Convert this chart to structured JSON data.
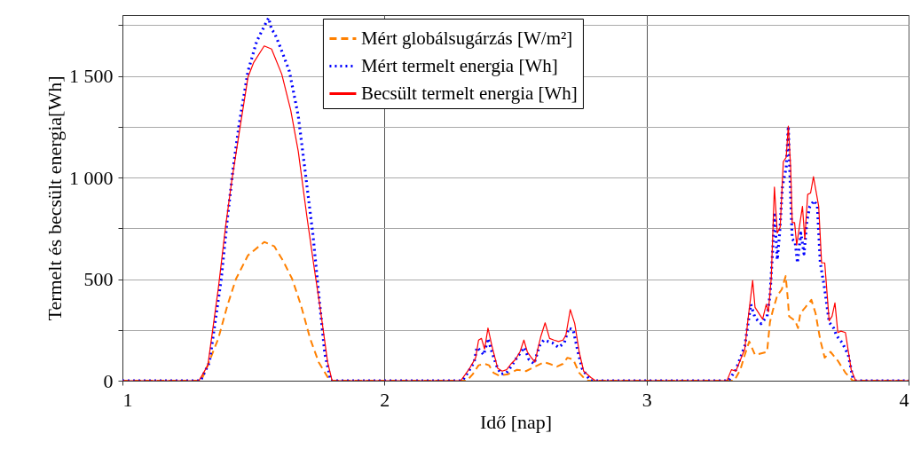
{
  "chart_data": {
    "type": "line",
    "xlabel": "Idő [nap]",
    "ylabel": "Termelt és becsült energia[Wh]",
    "xlim": [
      1,
      4
    ],
    "xticks": [
      1,
      2,
      3,
      4
    ],
    "ylim": [
      0,
      1800
    ],
    "yticks": [
      0,
      {
        "value": 250,
        "label": null
      },
      500,
      {
        "value": 750,
        "label": null
      },
      {
        "value": 1000,
        "label": "1 000"
      },
      {
        "value": 1250,
        "label": null
      },
      {
        "value": 1500,
        "label": "1 500"
      },
      {
        "value": 1750,
        "label": null
      }
    ],
    "grid": true,
    "legend": "top",
    "series": [
      {
        "name": "Mért globálsugárzás [W/m²]",
        "color": "#ff8000",
        "line_style": "dashed",
        "x": [
          1,
          1.3,
          1.321,
          1.366,
          1.4,
          1.433,
          1.479,
          1.541,
          1.58,
          1.614,
          1.648,
          1.682,
          1.716,
          1.749,
          1.783,
          1.8,
          2.314,
          2.337,
          2.359,
          2.382,
          2.399,
          2.416,
          2.438,
          2.472,
          2.506,
          2.54,
          2.562,
          2.585,
          2.608,
          2.63,
          2.658,
          2.681,
          2.698,
          2.72,
          2.743,
          2.766,
          2.777,
          3.335,
          3.358,
          3.375,
          3.392,
          3.414,
          3.46,
          3.471,
          3.482,
          3.499,
          3.516,
          3.531,
          3.539,
          3.544,
          3.567,
          3.578,
          3.587,
          3.606,
          3.629,
          3.645,
          3.663,
          3.68,
          3.702,
          3.73,
          3.759,
          3.787,
          4
        ],
        "values": [
          0,
          0,
          61,
          208,
          368,
          500,
          617,
          683,
          661,
          588,
          500,
          368,
          208,
          91,
          18,
          0,
          0,
          32,
          76,
          83,
          76,
          39,
          25,
          32,
          54,
          47,
          61,
          76,
          91,
          83,
          69,
          83,
          113,
          105,
          39,
          7,
          0,
          0,
          54,
          127,
          193,
          127,
          142,
          288,
          346,
          420,
          449,
          515,
          405,
          317,
          295,
          259,
          332,
          361,
          398,
          332,
          200,
          113,
          142,
          98,
          39,
          0,
          0
        ]
      },
      {
        "name": "Mért termelt energia [Wh]",
        "color": "#0000ff",
        "line_style": "dotted",
        "x": [
          1,
          1.298,
          1.332,
          1.377,
          1.4,
          1.422,
          1.445,
          1.479,
          1.512,
          1.546,
          1.558,
          1.569,
          1.58,
          1.603,
          1.637,
          1.671,
          1.699,
          1.727,
          1.749,
          1.772,
          1.795,
          2.297,
          2.314,
          2.342,
          2.353,
          2.365,
          2.379,
          2.395,
          2.41,
          2.427,
          2.444,
          2.466,
          2.483,
          2.506,
          2.534,
          2.551,
          2.571,
          2.591,
          2.608,
          2.641,
          2.664,
          2.686,
          2.703,
          2.72,
          2.737,
          2.754,
          2.777,
          2.788,
          3.313,
          3.341,
          3.375,
          3.398,
          3.414,
          3.437,
          3.46,
          3.471,
          3.482,
          3.488,
          3.499,
          3.508,
          3.519,
          3.533,
          3.541,
          3.55,
          3.556,
          3.567,
          3.576,
          3.589,
          3.601,
          3.612,
          3.623,
          3.64,
          3.652,
          3.663,
          3.68,
          3.697,
          3.714,
          3.725,
          3.747,
          3.77,
          3.787,
          3.798,
          4
        ],
        "values": [
          0,
          0,
          91,
          500,
          792,
          1041,
          1260,
          1523,
          1670,
          1757,
          1786,
          1728,
          1713,
          1640,
          1523,
          1304,
          1012,
          719,
          427,
          135,
          0,
          0,
          32,
          91,
          164,
          149,
          127,
          208,
          142,
          76,
          32,
          39,
          69,
          115,
          164,
          105,
          83,
          171,
          200,
          186,
          164,
          186,
          259,
          251,
          149,
          61,
          16,
          0,
          0,
          54,
          171,
          376,
          310,
          281,
          317,
          420,
          654,
          829,
          595,
          727,
          961,
          1048,
          1253,
          902,
          697,
          683,
          580,
          727,
          624,
          785,
          858,
          887,
          858,
          580,
          449,
          288,
          259,
          222,
          186,
          127,
          15,
          0,
          0
        ]
      },
      {
        "name": "Becsült termelt energia [Wh]",
        "color": "#ff0000",
        "line_style": "solid",
        "x": [
          1,
          1.292,
          1.326,
          1.366,
          1.394,
          1.417,
          1.445,
          1.479,
          1.501,
          1.541,
          1.569,
          1.608,
          1.642,
          1.671,
          1.704,
          1.733,
          1.755,
          1.783,
          1.8,
          2.291,
          2.325,
          2.348,
          2.359,
          2.37,
          2.382,
          2.395,
          2.41,
          2.432,
          2.449,
          2.466,
          2.483,
          2.5,
          2.517,
          2.532,
          2.545,
          2.557,
          2.574,
          2.585,
          2.596,
          2.613,
          2.63,
          2.647,
          2.664,
          2.681,
          2.692,
          2.709,
          2.726,
          2.743,
          2.76,
          2.788,
          2.805,
          3.307,
          3.324,
          3.341,
          3.375,
          3.386,
          3.405,
          3.414,
          3.443,
          3.457,
          3.465,
          3.476,
          3.488,
          3.499,
          3.51,
          3.522,
          3.533,
          3.541,
          3.55,
          3.556,
          3.565,
          3.573,
          3.595,
          3.604,
          3.615,
          3.626,
          3.637,
          3.657,
          3.668,
          3.68,
          3.697,
          3.708,
          3.719,
          3.73,
          3.742,
          3.759,
          3.781,
          3.798,
          4
        ],
        "values": [
          0,
          0,
          76,
          456,
          763,
          982,
          1216,
          1494,
          1567,
          1648,
          1633,
          1509,
          1333,
          1129,
          807,
          544,
          354,
          91,
          0,
          0,
          61,
          113,
          200,
          208,
          156,
          259,
          171,
          61,
          47,
          54,
          83,
          105,
          142,
          200,
          142,
          120,
          91,
          156,
          215,
          285,
          208,
          200,
          193,
          200,
          222,
          350,
          281,
          142,
          47,
          15,
          0,
          0,
          54,
          47,
          156,
          288,
          493,
          361,
          303,
          376,
          339,
          507,
          953,
          727,
          756,
          1078,
          1100,
          1253,
          1048,
          778,
          778,
          668,
          858,
          697,
          917,
          924,
          1004,
          858,
          580,
          580,
          295,
          317,
          383,
          237,
          244,
          237,
          54,
          0,
          0
        ]
      }
    ]
  }
}
